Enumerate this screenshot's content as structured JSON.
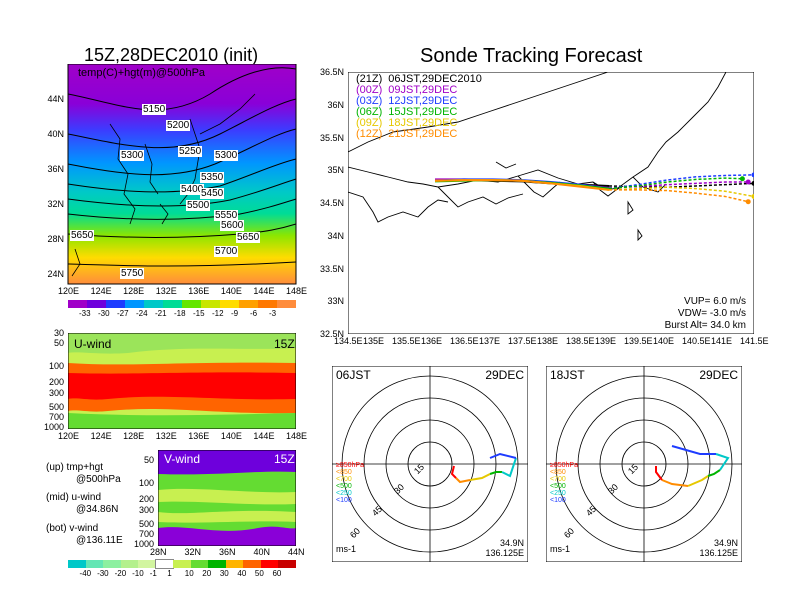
{
  "top_left": {
    "title": "15Z,28DEC2010 (init)",
    "subtitle": "temp(C)+hgt(m)@500hPa",
    "lat_ticks": [
      "44N",
      "40N",
      "36N",
      "32N",
      "28N",
      "24N"
    ],
    "lon_ticks": [
      "120E",
      "124E",
      "128E",
      "132E",
      "136E",
      "140E",
      "144E",
      "148E"
    ],
    "contour_labels": [
      "5150",
      "5200",
      "5250",
      "5300",
      "5300",
      "5350",
      "5400",
      "5450",
      "5500",
      "5550",
      "5600",
      "5650",
      "5650",
      "5700",
      "5750"
    ],
    "colorbar_ticks": [
      "-33",
      "-30",
      "-27",
      "-24",
      "-21",
      "-18",
      "-15",
      "-12",
      "-9",
      "-6",
      "-3"
    ],
    "colorbar_colors": [
      "#a000c8",
      "#6e00dc",
      "#1e3cff",
      "#0096ff",
      "#00c8c8",
      "#00dc96",
      "#64e600",
      "#c8e600",
      "#ffdc00",
      "#ffa000",
      "#ff7800",
      "#ff8c3c"
    ]
  },
  "u_wind": {
    "label": "U-wind",
    "time": "15Z",
    "y_ticks": [
      "30",
      "50",
      "100",
      "200",
      "300",
      "500",
      "700",
      "1000"
    ],
    "x_ticks": [
      "120E",
      "124E",
      "128E",
      "132E",
      "136E",
      "140E",
      "144E",
      "148E"
    ]
  },
  "v_wind": {
    "label": "V-wind",
    "time": "15Z",
    "y_ticks": [
      "50",
      "100",
      "200",
      "300",
      "500",
      "700",
      "1000"
    ],
    "x_ticks": [
      "28N",
      "32N",
      "36N",
      "40N",
      "44N"
    ]
  },
  "notes": {
    "up_1": "(up) tmp+hgt",
    "up_2": "@500hPa",
    "mid_1": "(mid) u-wind",
    "mid_2": "@34.86N",
    "bot_1": "(bot) v-wind",
    "bot_2": "@136.11E"
  },
  "wind_colorbar": {
    "ticks": [
      "-40",
      "-30",
      "-20",
      "-10",
      "-1",
      "1",
      "10",
      "20",
      "30",
      "40",
      "50",
      "60"
    ],
    "colors": [
      "#00c8c8",
      "#64e6b4",
      "#8cf0a0",
      "#b4f08c",
      "#d2f5a0",
      "#ffffff",
      "#c8f050",
      "#64dc32",
      "#00b400",
      "#ffb400",
      "#ff6400",
      "#ff0000",
      "#c80000"
    ]
  },
  "main": {
    "title": "Sonde Tracking Forecast",
    "lat_ticks": [
      "36.5N",
      "36N",
      "35.5N",
      "35N",
      "34.5N",
      "34N",
      "33.5N",
      "33N",
      "32.5N"
    ],
    "lon_ticks": [
      "134.5E",
      "135E",
      "135.5E",
      "136E",
      "136.5E",
      "137E",
      "137.5E",
      "138E",
      "138.5E",
      "139E",
      "139.5E",
      "140E",
      "140.5E",
      "141E",
      "141.5E"
    ],
    "legend": [
      {
        "code": "(21Z)",
        "time": "06JST,29DEC2010",
        "color": "#000000"
      },
      {
        "code": "(00Z)",
        "time": "09JST,29DEC",
        "color": "#a000c8"
      },
      {
        "code": "(03Z)",
        "time": "12JST,29DEC",
        "color": "#1e3cff"
      },
      {
        "code": "(06Z)",
        "time": "15JST,29DEC",
        "color": "#00b400"
      },
      {
        "code": "(09Z)",
        "time": "18JST,29DEC",
        "color": "#e6c800"
      },
      {
        "code": "(12Z)",
        "time": "21JST,29DEC",
        "color": "#ff8c00"
      }
    ],
    "params": {
      "vup": "VUP= 6.0 m/s",
      "vdw": "VDW= -3.0 m/s",
      "burst": "Burst Alt= 34.0 km"
    }
  },
  "hodo_left": {
    "time": "06JST",
    "date": "29DEC",
    "ring_labels": [
      "15",
      "30",
      "45",
      "60"
    ],
    "levels": [
      {
        "label": "≥850hPa",
        "color": "#ff0000"
      },
      {
        "label": "<850",
        "color": "#ff8c00"
      },
      {
        "label": "<700",
        "color": "#e6c800"
      },
      {
        "label": "<500",
        "color": "#00b400"
      },
      {
        "label": "<250",
        "color": "#00c8c8"
      },
      {
        "label": "<100",
        "color": "#1e3cff"
      }
    ],
    "unit": "ms-1",
    "lat": "34.9N",
    "lon": "136.125E"
  },
  "hodo_right": {
    "time": "18JST",
    "date": "29DEC",
    "ring_labels": [
      "15",
      "30",
      "45",
      "60"
    ],
    "levels": [
      {
        "label": "≥850hPa",
        "color": "#ff0000"
      },
      {
        "label": "<850",
        "color": "#ff8c00"
      },
      {
        "label": "<700",
        "color": "#e6c800"
      },
      {
        "label": "<500",
        "color": "#00b400"
      },
      {
        "label": "<250",
        "color": "#00c8c8"
      },
      {
        "label": "<100",
        "color": "#1e3cff"
      }
    ],
    "unit": "ms-1",
    "lat": "34.9N",
    "lon": "136.125E"
  },
  "chart_data": {
    "type": "line",
    "title": "Sonde Tracking Forecast",
    "xlabel": "",
    "ylabel": "",
    "xlim": [
      134.5,
      141.5
    ],
    "ylim": [
      32.5,
      36.5
    ],
    "series": [
      {
        "name": "(21Z) 06JST,29DEC2010",
        "color": "#000000",
        "x": [
          136.0,
          136.5,
          137.0,
          137.5,
          138.0,
          138.5,
          139.0,
          139.5,
          140.0,
          140.5,
          141.0,
          141.5
        ],
        "y": [
          34.85,
          34.85,
          34.84,
          34.83,
          34.8,
          34.78,
          34.76,
          34.75,
          34.74,
          34.76,
          34.78,
          34.8
        ]
      },
      {
        "name": "(00Z) 09JST,29DEC",
        "color": "#a000c8",
        "x": [
          136.0,
          136.5,
          137.0,
          137.5,
          138.0,
          138.5,
          139.0,
          139.5,
          140.0,
          140.5,
          141.0,
          141.4
        ],
        "y": [
          34.86,
          34.86,
          34.85,
          34.84,
          34.81,
          34.78,
          34.73,
          34.75,
          34.78,
          34.8,
          34.82,
          34.82
        ]
      },
      {
        "name": "(03Z) 12JST,29DEC",
        "color": "#1e3cff",
        "x": [
          136.0,
          136.5,
          137.0,
          137.5,
          138.0,
          138.5,
          139.0,
          139.5,
          140.0,
          140.5,
          141.0,
          141.5
        ],
        "y": [
          34.84,
          34.86,
          34.86,
          34.85,
          34.82,
          34.78,
          34.72,
          34.78,
          34.85,
          34.9,
          34.92,
          34.93
        ]
      },
      {
        "name": "(06Z) 15JST,29DEC",
        "color": "#00b400",
        "x": [
          136.0,
          136.5,
          137.0,
          137.5,
          138.0,
          138.5,
          139.0,
          139.5,
          140.0,
          140.5,
          141.0,
          141.3
        ],
        "y": [
          34.83,
          34.84,
          34.85,
          34.84,
          34.81,
          34.77,
          34.72,
          34.76,
          34.82,
          34.86,
          34.88,
          34.87
        ]
      },
      {
        "name": "(09Z) 18JST,29DEC",
        "color": "#e6c800",
        "x": [
          136.0,
          136.5,
          137.0,
          137.5,
          138.0,
          138.5,
          139.0,
          139.5,
          140.0,
          140.5,
          141.0,
          141.5
        ],
        "y": [
          34.84,
          34.85,
          34.85,
          34.84,
          34.8,
          34.76,
          34.7,
          34.72,
          34.74,
          34.72,
          34.68,
          34.6
        ]
      },
      {
        "name": "(12Z) 21JST,29DEC",
        "color": "#ff8c00",
        "x": [
          136.0,
          136.5,
          137.0,
          137.5,
          138.0,
          138.5,
          139.0,
          139.5,
          140.0,
          140.5,
          141.0,
          141.4
        ],
        "y": [
          34.84,
          34.85,
          34.85,
          34.84,
          34.8,
          34.75,
          34.7,
          34.7,
          34.69,
          34.65,
          34.6,
          34.52
        ]
      }
    ]
  }
}
